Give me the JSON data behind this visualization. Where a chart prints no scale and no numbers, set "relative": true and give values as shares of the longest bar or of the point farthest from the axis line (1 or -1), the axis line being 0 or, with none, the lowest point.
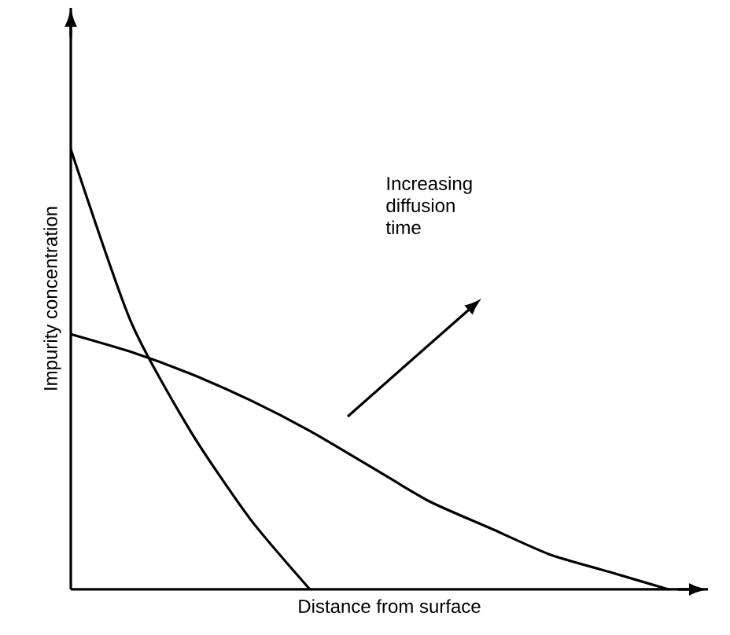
{
  "chart_data": {
    "type": "line",
    "relative": true,
    "xlabel": "Distance from surface",
    "ylabel": "Impurity concentration",
    "annotations": [
      "Increasing diffusion time"
    ],
    "categories": [
      null,
      null,
      null,
      null,
      null,
      null,
      null,
      null,
      null,
      null,
      null
    ],
    "series": [
      {
        "color": "#000000",
        "values": [
          1,
          0.61,
          0.36,
          0.16,
          0,
          null,
          null,
          null,
          null,
          null,
          null
        ]
      },
      {
        "color": "#000000",
        "values": [
          0.58,
          0.54,
          0.49,
          0.43,
          0.36,
          0.28,
          0.2,
          0.14,
          0.08,
          0.04,
          0
        ]
      }
    ]
  }
}
